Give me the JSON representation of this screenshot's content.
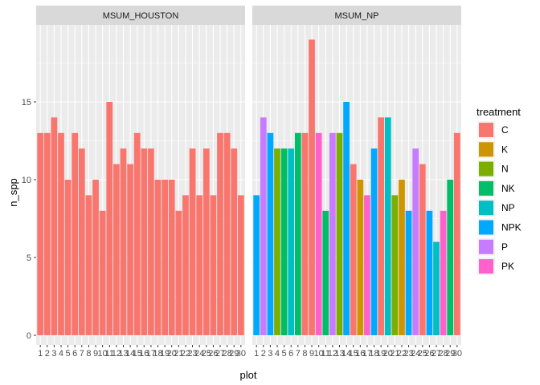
{
  "chart_data": {
    "type": "bar",
    "xlabel": "plot",
    "ylabel": "n_spp",
    "ylim": [
      0,
      20
    ],
    "yticks": [
      0,
      5,
      10,
      15
    ],
    "grid": true,
    "legend": {
      "title": "treatment",
      "placement": "right",
      "entries": [
        {
          "name": "C",
          "color": "#F8766D"
        },
        {
          "name": "K",
          "color": "#CD9600"
        },
        {
          "name": "N",
          "color": "#7CAE00"
        },
        {
          "name": "NK",
          "color": "#00BE67"
        },
        {
          "name": "NP",
          "color": "#00BFC4"
        },
        {
          "name": "NPK",
          "color": "#00A9FF"
        },
        {
          "name": "P",
          "color": "#C77CFF"
        },
        {
          "name": "PK",
          "color": "#FF61CC"
        }
      ]
    },
    "panels": [
      {
        "label": "MSUM_HOUSTON",
        "plots": [
          "1",
          "2",
          "3",
          "4",
          "5",
          "6",
          "7",
          "8",
          "9",
          "10",
          "11",
          "12",
          "13",
          "14",
          "15",
          "16",
          "17",
          "18",
          "19",
          "20",
          "21",
          "22",
          "23",
          "24",
          "25",
          "26",
          "27",
          "28",
          "29",
          "30"
        ],
        "values": [
          13,
          13,
          14,
          13,
          10,
          13,
          12,
          9,
          10,
          8,
          15,
          11,
          12,
          11,
          13,
          12,
          12,
          10,
          10,
          10,
          8,
          9,
          12,
          9,
          12,
          9,
          13,
          13,
          12,
          9
        ],
        "treatments": [
          "C",
          "C",
          "C",
          "C",
          "C",
          "C",
          "C",
          "C",
          "C",
          "C",
          "C",
          "C",
          "C",
          "C",
          "C",
          "C",
          "C",
          "C",
          "C",
          "C",
          "C",
          "C",
          "C",
          "C",
          "C",
          "C",
          "C",
          "C",
          "C",
          "C"
        ]
      },
      {
        "label": "MSUM_NP",
        "plots": [
          "1",
          "2",
          "3",
          "4",
          "5",
          "6",
          "7",
          "8",
          "9",
          "10",
          "11",
          "12",
          "13",
          "14",
          "15",
          "16",
          "17",
          "18",
          "19",
          "20",
          "21",
          "22",
          "23",
          "24",
          "25",
          "26",
          "27",
          "28",
          "29",
          "30"
        ],
        "values": [
          9,
          14,
          13,
          12,
          12,
          12,
          13,
          13,
          19,
          13,
          8,
          13,
          13,
          15,
          11,
          10,
          9,
          12,
          14,
          14,
          9,
          10,
          8,
          12,
          11,
          8,
          6,
          8,
          10,
          13
        ],
        "treatments": [
          "NPK",
          "P",
          "NPK",
          "N",
          "NK",
          "NP",
          "NK",
          "C",
          "C",
          "PK",
          "NK",
          "P",
          "N",
          "NPK",
          "C",
          "K",
          "PK",
          "NPK",
          "C",
          "NP",
          "N",
          "K",
          "NPK",
          "P",
          "C",
          "NPK",
          "NP",
          "PK",
          "NK",
          "C"
        ]
      }
    ]
  }
}
